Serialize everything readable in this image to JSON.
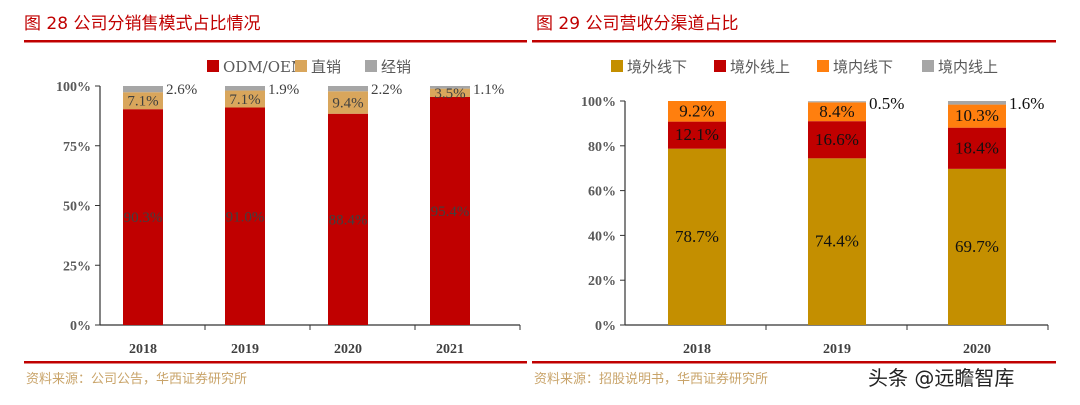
{
  "watermark": "头条 @远瞻智库",
  "chart_data": [
    {
      "type": "bar",
      "stacked": true,
      "title": "图  28 公司分销售模式占比情况",
      "source": "资料来源：公司公告，华西证券研究所",
      "categories": [
        "2018",
        "2019",
        "2020",
        "2021"
      ],
      "ylim": [
        0,
        100
      ],
      "yticks": [
        "0%",
        "25%",
        "50%",
        "75%",
        "100%"
      ],
      "ytick_values": [
        0,
        25,
        50,
        75,
        100
      ],
      "legend_position": "top",
      "grid": false,
      "series": [
        {
          "name": "ODM/OEM",
          "color": "#C00000",
          "values": [
            90.3,
            91.0,
            88.4,
            95.4
          ],
          "labels": [
            "90.3%",
            "91.0%",
            "88.4%",
            "95.4%"
          ]
        },
        {
          "name": "直销",
          "color": "#D9A65C",
          "values": [
            7.1,
            7.1,
            9.4,
            3.5
          ],
          "labels": [
            "7.1%",
            "7.1%",
            "9.4%",
            "3.5%"
          ]
        },
        {
          "name": "经销",
          "color": "#A6A6A6",
          "values": [
            2.6,
            1.9,
            2.2,
            1.1
          ],
          "labels": [
            "2.6%",
            "1.9%",
            "2.2%",
            "1.1%"
          ]
        }
      ]
    },
    {
      "type": "bar",
      "stacked": true,
      "title": "图  29 公司营收分渠道占比",
      "source": "资料来源：招股说明书，华西证券研究所",
      "categories": [
        "2018",
        "2019",
        "2020"
      ],
      "ylim": [
        0,
        100
      ],
      "yticks": [
        "0%",
        "20%",
        "40%",
        "60%",
        "80%",
        "100%"
      ],
      "ytick_values": [
        0,
        20,
        40,
        60,
        80,
        100
      ],
      "legend_position": "top",
      "grid": false,
      "series": [
        {
          "name": "境外线下",
          "color": "#C48F00",
          "values": [
            78.7,
            74.4,
            69.7
          ],
          "labels": [
            "78.7%",
            "74.4%",
            "69.7%"
          ]
        },
        {
          "name": "境外线上",
          "color": "#C00000",
          "values": [
            12.1,
            16.6,
            18.4
          ],
          "labels": [
            "12.1%",
            "16.6%",
            "18.4%"
          ]
        },
        {
          "name": "境内线下",
          "color": "#FF7F0E",
          "values": [
            9.2,
            8.4,
            10.3
          ],
          "labels": [
            "9.2%",
            "8.4%",
            "10.3%"
          ]
        },
        {
          "name": "境内线上",
          "color": "#A6A6A6",
          "values": [
            0,
            0.5,
            1.6
          ],
          "labels": [
            "",
            "0.5%",
            "1.6%"
          ]
        }
      ]
    }
  ]
}
